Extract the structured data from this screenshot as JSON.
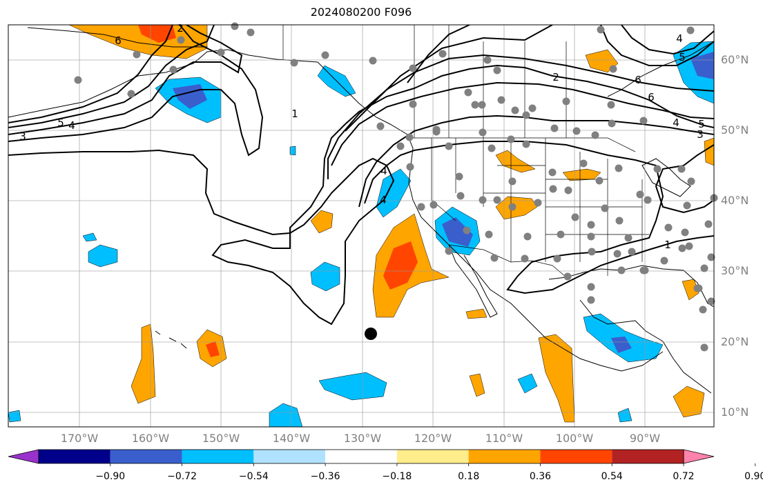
{
  "title": "2024080200 F096",
  "longitude_labels": [
    "170°W",
    "160°W",
    "150°W",
    "140°W",
    "130°W",
    "120°W",
    "110°W",
    "100°W",
    "90°W"
  ],
  "latitude_labels": [
    "60°N",
    "50°N",
    "40°N",
    "30°N",
    "20°N",
    "10°N"
  ],
  "contour_labels": [
    "6",
    "2",
    "4",
    "5",
    "4",
    "3",
    "1",
    "4",
    "2",
    "6",
    "6",
    "4",
    "5",
    "3",
    "1",
    "4",
    "5"
  ],
  "colorbar": {
    "tick_labels": [
      "−0.90",
      "−0.72",
      "−0.54",
      "−0.36",
      "−0.18",
      "0.18",
      "0.36",
      "0.54",
      "0.72",
      "0.90"
    ],
    "colors": [
      "#9932cc",
      "#00008b",
      "#3a5fcd",
      "#00bfff",
      "#b0e2ff",
      "#ffffff",
      "#ffec8b",
      "#ffa500",
      "#ff4500",
      "#b22222",
      "#ff82ab"
    ]
  },
  "fill_colors": {
    "orange": "#ffa500",
    "red_orange": "#ff4500",
    "dark_red": "#b22222",
    "sky_blue": "#00bfff",
    "royal_blue": "#3a5fcd"
  },
  "station_color": "#808080",
  "marker_color": "#000000"
}
